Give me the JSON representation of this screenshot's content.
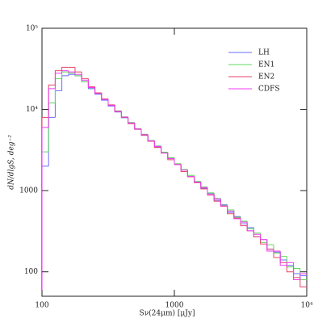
{
  "chart_data": {
    "type": "histogram",
    "log_x": true,
    "log_y": true,
    "x_label": "Sν(24μm) [μJy]",
    "y_label": "dN/dlgS, deg⁻²",
    "xlim": [
      100,
      10000
    ],
    "ylim": [
      50,
      100000
    ],
    "xticks": [
      100,
      1000,
      {
        "value": 10000,
        "label": "10⁴"
      }
    ],
    "yticks": [
      100,
      1000,
      {
        "value": 10000,
        "label": "10⁴"
      },
      {
        "value": 100000,
        "label": "10⁵"
      }
    ],
    "legend": "upper right",
    "bins": [
      100,
      112.2,
      125.9,
      141.3,
      158.5,
      177.8,
      199.5,
      223.9,
      251.2,
      281.8,
      316.2,
      354.8,
      398.1,
      446.7,
      501.2,
      562.3,
      631.0,
      707.9,
      794.3,
      891.3,
      1000,
      1122,
      1259,
      1413,
      1585,
      1778,
      1995,
      2239,
      2512,
      2818,
      3162,
      3548,
      3981,
      4467,
      5012,
      5623,
      6310,
      7079,
      7943,
      8913,
      10000
    ],
    "series": [
      {
        "name": "LH",
        "color": "#6b6bff",
        "values": [
          2000,
          8000,
          17000,
          26000,
          27000,
          26000,
          22000,
          18000,
          15400,
          13000,
          11000,
          9300,
          7900,
          6700,
          5700,
          4800,
          4100,
          3450,
          2950,
          2500,
          2100,
          1800,
          1500,
          1290,
          1070,
          930,
          760,
          670,
          540,
          480,
          390,
          350,
          270,
          250,
          190,
          175,
          140,
          120,
          95,
          90
        ]
      },
      {
        "name": "EN1",
        "color": "#5fd85f",
        "values": [
          3000,
          12000,
          24000,
          29000,
          28000,
          26000,
          22000,
          18500,
          15800,
          13400,
          11300,
          9600,
          8100,
          6900,
          5800,
          4950,
          4150,
          3550,
          2980,
          2550,
          2150,
          1820,
          1540,
          1300,
          1110,
          940,
          800,
          660,
          580,
          470,
          420,
          340,
          300,
          230,
          215,
          170,
          155,
          115,
          110,
          80
        ]
      },
      {
        "name": "EN2",
        "color": "#e8456a",
        "values": [
          8000,
          20000,
          30000,
          33000,
          33000,
          29000,
          24000,
          19000,
          16000,
          13500,
          11400,
          9500,
          8000,
          6700,
          5700,
          4800,
          4050,
          3400,
          2900,
          2400,
          2100,
          1720,
          1480,
          1250,
          1050,
          880,
          740,
          640,
          520,
          460,
          370,
          320,
          270,
          220,
          190,
          150,
          130,
          100,
          85,
          65
        ]
      },
      {
        "name": "CDFS",
        "color": "#f03cf0",
        "values": [
          6000,
          18000,
          28000,
          30000,
          29000,
          27000,
          23000,
          18600,
          15700,
          13300,
          11200,
          9400,
          8050,
          6800,
          5750,
          4900,
          4100,
          3500,
          2900,
          2480,
          2090,
          1790,
          1500,
          1270,
          1090,
          900,
          790,
          650,
          560,
          450,
          410,
          320,
          290,
          250,
          180,
          180,
          120,
          130,
          80,
          95
        ]
      }
    ]
  }
}
